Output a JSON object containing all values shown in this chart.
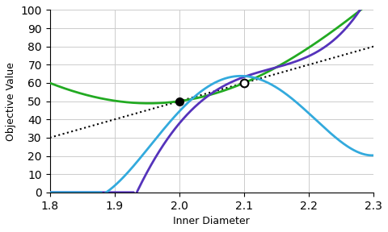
{
  "title": "",
  "xlabel": "Inner Diameter",
  "ylabel": "Objective Value",
  "xlim": [
    1.8,
    2.3
  ],
  "ylim": [
    0,
    100
  ],
  "xticks": [
    1.8,
    1.9,
    2.0,
    2.1,
    2.2,
    2.3
  ],
  "yticks": [
    0,
    10,
    20,
    30,
    40,
    50,
    60,
    70,
    80,
    90,
    100
  ],
  "point1": [
    2.0,
    50
  ],
  "point2": [
    2.1,
    60
  ],
  "line_color": "#000000",
  "green_color": "#22aa22",
  "purple_color": "#5533bb",
  "cyan_color": "#33aadd",
  "background_color": "#ffffff",
  "grid_color": "#cccccc",
  "green_pts_x": [
    1.8,
    1.97,
    2.0,
    2.1,
    2.28
  ],
  "green_pts_y": [
    60,
    49,
    50,
    60,
    100
  ],
  "purple_pts_x": [
    1.93,
    1.97,
    2.0,
    2.1,
    2.22,
    2.28
  ],
  "purple_pts_y": [
    0,
    10,
    50,
    60,
    80,
    100
  ],
  "cyan_pts_x": [
    1.88,
    1.93,
    2.0,
    2.1,
    2.2,
    2.3
  ],
  "cyan_pts_y": [
    0,
    10,
    50,
    60,
    45,
    20
  ]
}
